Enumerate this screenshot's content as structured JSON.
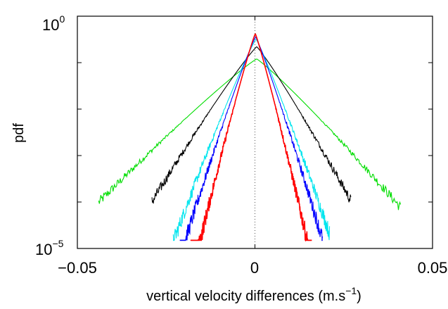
{
  "chart_data": {
    "type": "line",
    "title": "",
    "xlabel_main": "vertical velocity differences (m.s",
    "xlabel_exp": "−1",
    "xlabel_close": ")",
    "ylabel": "pdf",
    "xlim": [
      -0.05,
      0.05
    ],
    "ylim": [
      1e-05,
      1
    ],
    "yscale": "log",
    "grid": false,
    "legend": "none",
    "zero_line": true,
    "x_ticks": [
      {
        "value": -0.05,
        "label": "−0.05"
      },
      {
        "value": 0,
        "label": "0"
      },
      {
        "value": 0.05,
        "label": "0.05"
      }
    ],
    "y_ticks": [
      {
        "value": 1,
        "base": "10",
        "exp": "0"
      },
      {
        "value": 1e-05,
        "base": "10",
        "exp": "−5"
      }
    ],
    "series": [
      {
        "color": "#00dd00",
        "peak": 0.12,
        "scale_left": 0.0068,
        "scale_right": 0.006,
        "center": 0.0005,
        "x_min": -0.044,
        "x_max": 0.041
      },
      {
        "color": "#000000",
        "peak": 0.22,
        "scale_left": 0.0042,
        "scale_right": 0.0038,
        "center": 0.0005,
        "x_min": -0.029,
        "x_max": 0.027
      },
      {
        "color": "#00e5ee",
        "peak": 0.32,
        "scale_left": 0.0026,
        "scale_right": 0.0024,
        "center": 0.0003,
        "x_min": -0.023,
        "x_max": 0.021
      },
      {
        "color": "#0000ff",
        "peak": 0.36,
        "scale_left": 0.0022,
        "scale_right": 0.0021,
        "center": 0.0002,
        "x_min": -0.021,
        "x_max": 0.019
      },
      {
        "color": "#ff0000",
        "peak": 0.42,
        "scale_left": 0.0017,
        "scale_right": 0.0016,
        "center": 0.0001,
        "x_min": -0.018,
        "x_max": 0.016
      }
    ]
  }
}
